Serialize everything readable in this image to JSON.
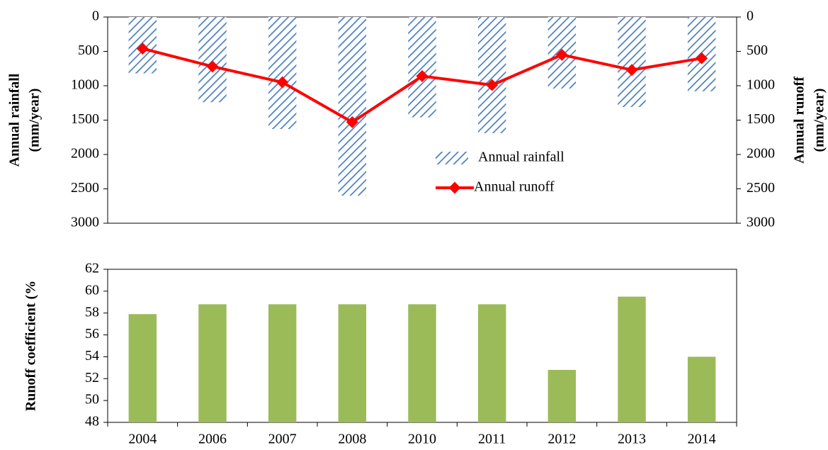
{
  "chart_data": [
    {
      "type": "combo",
      "ylabel": [
        "Annual rainfall",
        "(mm/year)"
      ],
      "y2label": [
        "Annual runoff",
        "(mm/year)"
      ],
      "ylim": [
        0,
        3000
      ],
      "yticks": [
        0,
        500,
        1000,
        1500,
        2000,
        2500,
        3000
      ],
      "y2lim": [
        0,
        3000
      ],
      "y2ticks": [
        0,
        500,
        1000,
        1500,
        2000,
        2500,
        3000
      ],
      "y_inverted": true,
      "legend": "lower-center",
      "series": [
        {
          "name": "Annual rainfall",
          "type": "bar",
          "fill": "hatch",
          "color": "#4f81bd",
          "values": [
            820,
            1240,
            1630,
            2600,
            1460,
            1690,
            1040,
            1310,
            1080
          ]
        },
        {
          "name": "Annual runoff",
          "type": "line",
          "axis": "y2",
          "color": "#ff0000",
          "values": [
            460,
            720,
            950,
            1530,
            860,
            990,
            550,
            770,
            600
          ]
        }
      ]
    },
    {
      "type": "bar",
      "ylabel": [
        "Runoff coefficient (%"
      ],
      "categories": [
        "2004",
        "2006",
        "2007",
        "2008",
        "2010",
        "2011",
        "2012",
        "2013",
        "2014"
      ],
      "ylim": [
        48,
        62
      ],
      "yticks": [
        48,
        50,
        52,
        54,
        56,
        58,
        60,
        62
      ],
      "color": "#9bbb59",
      "values": [
        57.9,
        58.8,
        58.8,
        58.8,
        58.8,
        58.8,
        52.8,
        59.5,
        54.0
      ]
    }
  ]
}
